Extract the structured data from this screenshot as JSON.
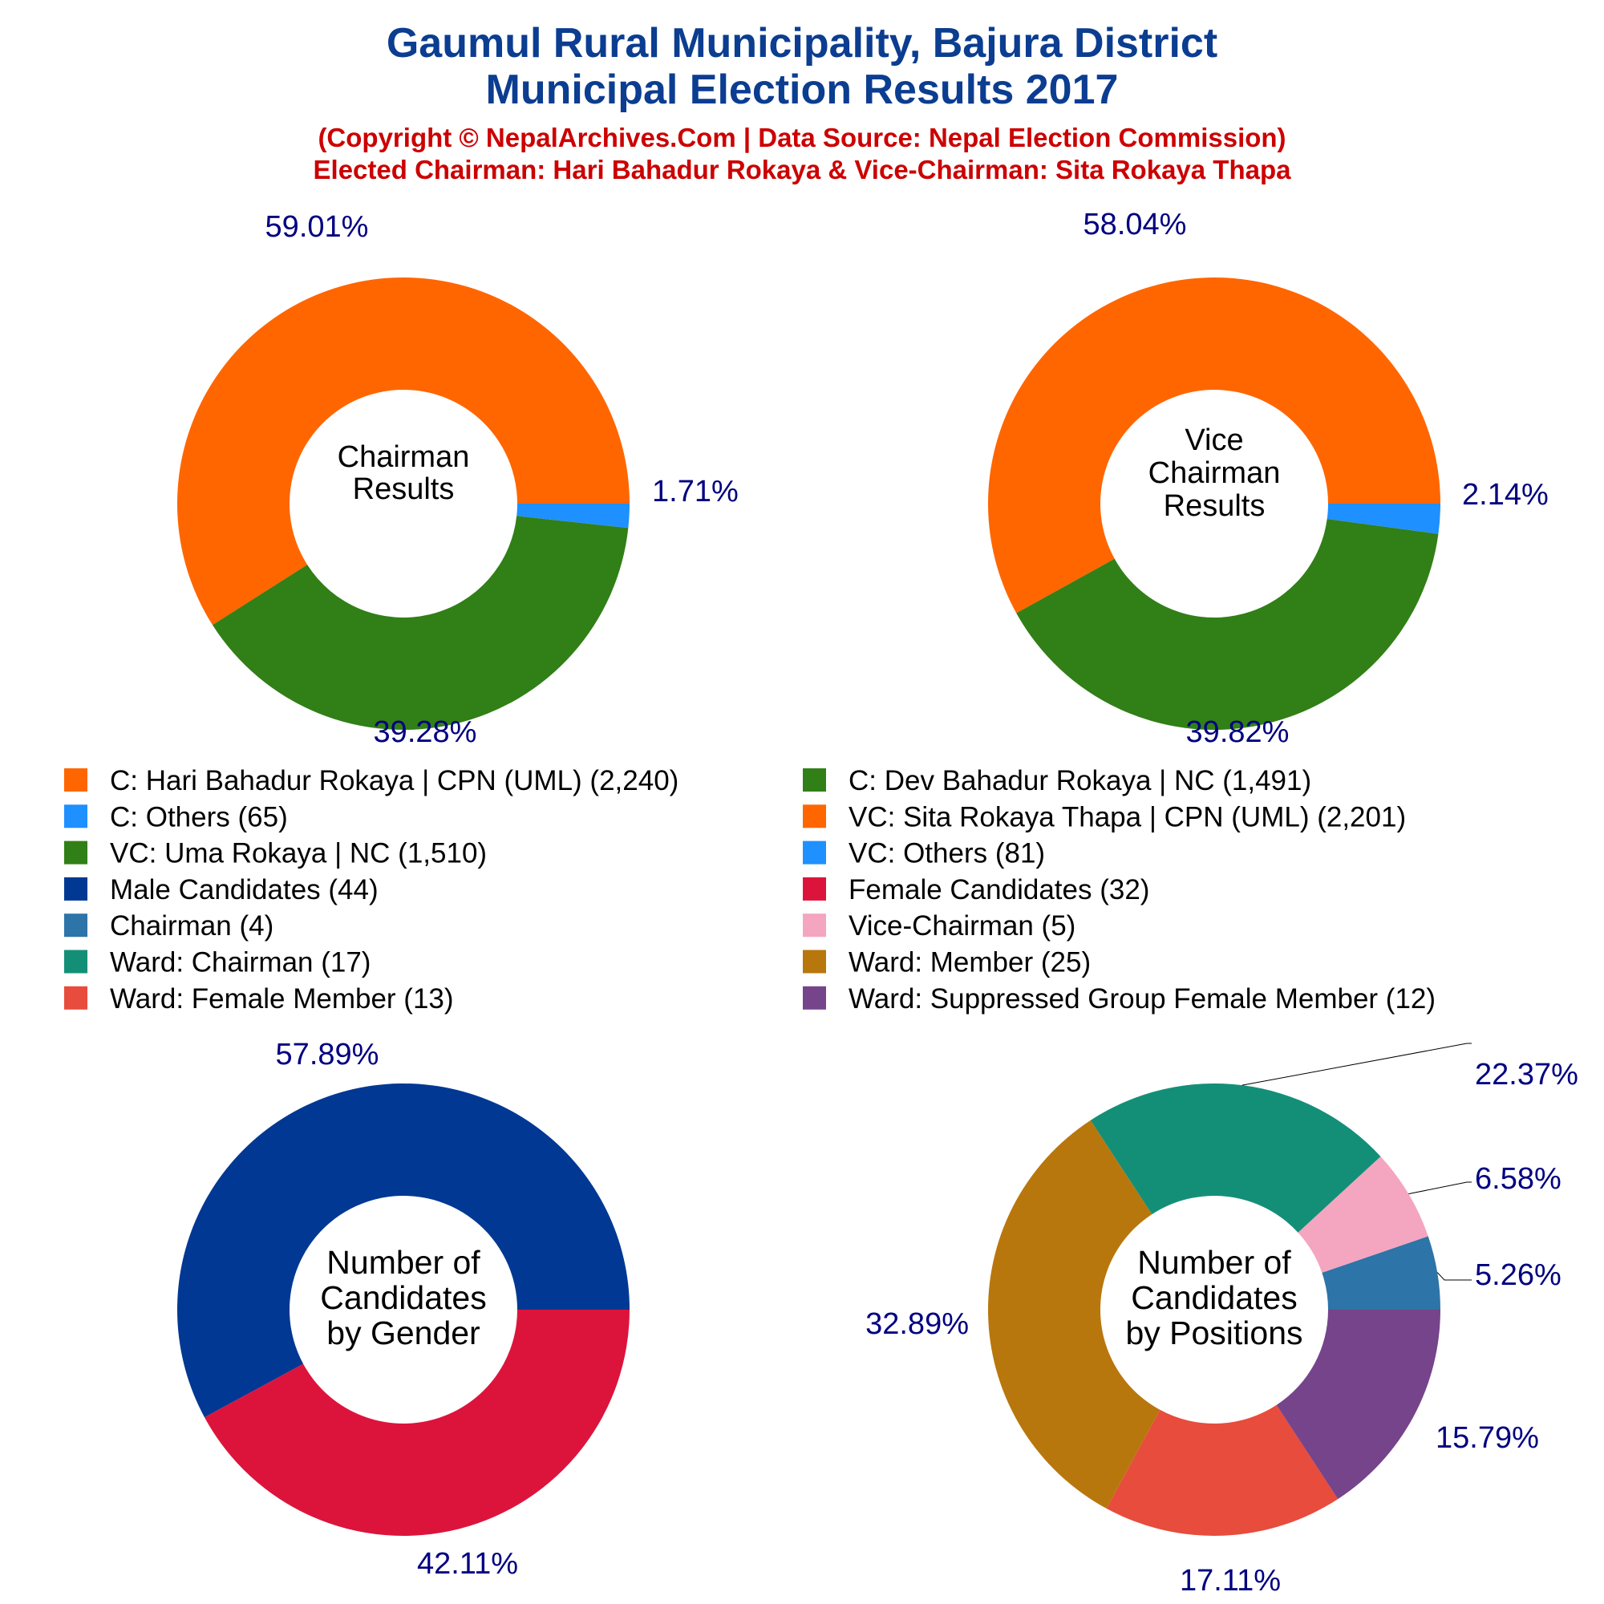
{
  "title": {
    "line1": "Gaumul Rural Municipality, Bajura District",
    "line2": "Municipal Election Results 2017",
    "copyright": "(Copyright © NepalArchives.Com | Data Source: Nepal Election Commission)",
    "elected": "Elected Chairman: Hari Bahadur Rokaya & Vice-Chairman: Sita Rokaya Thapa"
  },
  "colors": {
    "title": "#0b3d91",
    "subtitle": "#cc0000",
    "percent_label": "#000080",
    "orange": "#FF6600",
    "light_blue": "#1E90FF",
    "green": "#317F17",
    "navy": "#003893",
    "crimson": "#DC143C",
    "steel_blue": "#2D74A8",
    "pink": "#F4A5C0",
    "teal": "#148F77",
    "gold_brown": "#B8770D",
    "red_orange": "#E74C3C",
    "purple": "#76448A"
  },
  "chart_data": [
    {
      "id": "chairman",
      "type": "pie",
      "center_label": [
        "Chairman",
        "Results"
      ],
      "slices": [
        {
          "label": "C: Hari Bahadur Rokaya | CPN (UML)",
          "value": 2240,
          "percent": "59.01%",
          "color": "#FF6600"
        },
        {
          "label": "C: Dev Bahadur Rokaya | NC",
          "value": 1491,
          "percent": "39.28%",
          "color": "#317F17"
        },
        {
          "label": "C: Others",
          "value": 65,
          "percent": "1.71%",
          "color": "#1E90FF"
        }
      ]
    },
    {
      "id": "vice-chairman",
      "type": "pie",
      "center_label": [
        "Vice",
        "Chairman",
        "Results"
      ],
      "slices": [
        {
          "label": "VC: Sita Rokaya Thapa | CPN (UML)",
          "value": 2201,
          "percent": "58.04%",
          "color": "#FF6600"
        },
        {
          "label": "VC: Uma Rokaya | NC",
          "value": 1510,
          "percent": "39.82%",
          "color": "#317F17"
        },
        {
          "label": "VC: Others",
          "value": 81,
          "percent": "2.14%",
          "color": "#1E90FF"
        }
      ]
    },
    {
      "id": "gender",
      "type": "pie",
      "center_label": [
        "Number of",
        "Candidates",
        "by Gender"
      ],
      "slices": [
        {
          "label": "Male Candidates",
          "value": 44,
          "percent": "57.89%",
          "color": "#003893"
        },
        {
          "label": "Female Candidates",
          "value": 32,
          "percent": "42.11%",
          "color": "#DC143C"
        }
      ]
    },
    {
      "id": "positions",
      "type": "pie",
      "center_label": [
        "Number of",
        "Candidates",
        "by Positions"
      ],
      "slices": [
        {
          "label": "Chairman",
          "value": 4,
          "percent": "5.26%",
          "color": "#2D74A8"
        },
        {
          "label": "Vice-Chairman",
          "value": 5,
          "percent": "6.58%",
          "color": "#F4A5C0"
        },
        {
          "label": "Ward: Chairman",
          "value": 17,
          "percent": "22.37%",
          "color": "#148F77"
        },
        {
          "label": "Ward: Member",
          "value": 25,
          "percent": "32.89%",
          "color": "#B8770D"
        },
        {
          "label": "Ward: Female Member",
          "value": 13,
          "percent": "17.11%",
          "color": "#E74C3C"
        },
        {
          "label": "Ward: Suppressed Group Female Member",
          "value": 12,
          "percent": "15.79%",
          "color": "#76448A"
        }
      ]
    }
  ],
  "legend": [
    {
      "text": "C: Hari Bahadur Rokaya | CPN (UML) (2,240)",
      "color": "#FF6600"
    },
    {
      "text": "C: Dev Bahadur Rokaya | NC (1,491)",
      "color": "#317F17"
    },
    {
      "text": "C: Others (65)",
      "color": "#1E90FF"
    },
    {
      "text": "VC: Sita Rokaya Thapa | CPN (UML) (2,201)",
      "color": "#FF6600"
    },
    {
      "text": "VC: Uma Rokaya | NC (1,510)",
      "color": "#317F17"
    },
    {
      "text": "VC: Others (81)",
      "color": "#1E90FF"
    },
    {
      "text": "Male Candidates (44)",
      "color": "#003893"
    },
    {
      "text": "Female Candidates (32)",
      "color": "#DC143C"
    },
    {
      "text": "Chairman (4)",
      "color": "#2D74A8"
    },
    {
      "text": "Vice-Chairman (5)",
      "color": "#F4A5C0"
    },
    {
      "text": "Ward: Chairman (17)",
      "color": "#148F77"
    },
    {
      "text": "Ward: Member (25)",
      "color": "#B8770D"
    },
    {
      "text": "Ward: Female Member (13)",
      "color": "#E74C3C"
    },
    {
      "text": "Ward: Suppressed Group Female Member (12)",
      "color": "#76448A"
    }
  ]
}
